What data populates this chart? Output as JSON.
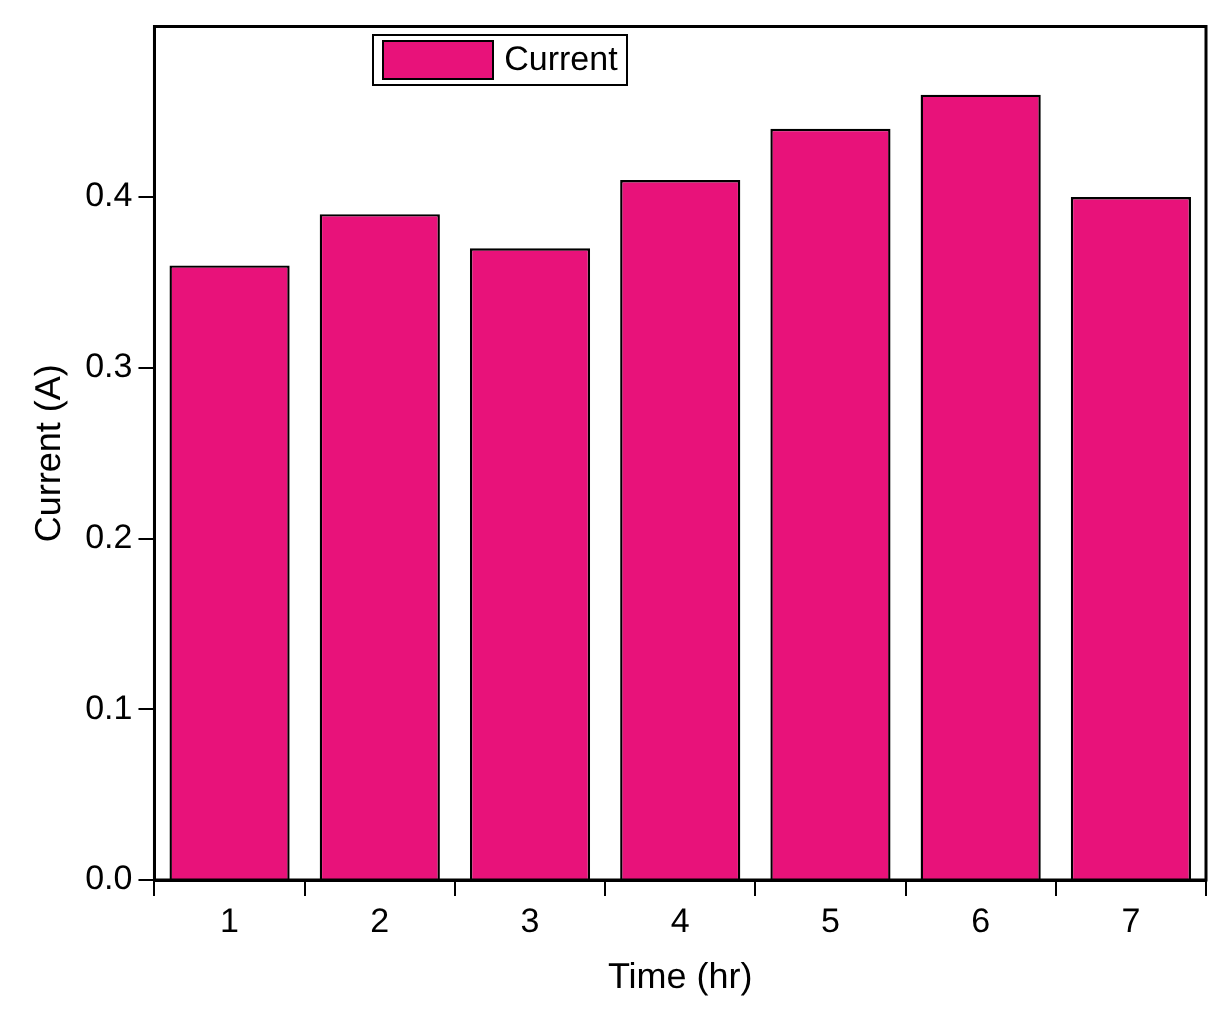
{
  "chart_data": {
    "type": "bar",
    "xlabel": "Time (hr)",
    "ylabel": "Current (A)",
    "categories": [
      "1",
      "2",
      "3",
      "4",
      "5",
      "6",
      "7"
    ],
    "series": [
      {
        "name": "Current",
        "color": "#e8127a",
        "values": [
          0.36,
          0.39,
          0.37,
          0.41,
          0.44,
          0.46,
          0.4
        ]
      }
    ],
    "ylim": [
      0,
      0.5
    ],
    "yticks": [
      {
        "value": 0,
        "label": "0.0"
      },
      0.1,
      0.2,
      0.3,
      0.4
    ],
    "grid": false,
    "legend": "top"
  }
}
